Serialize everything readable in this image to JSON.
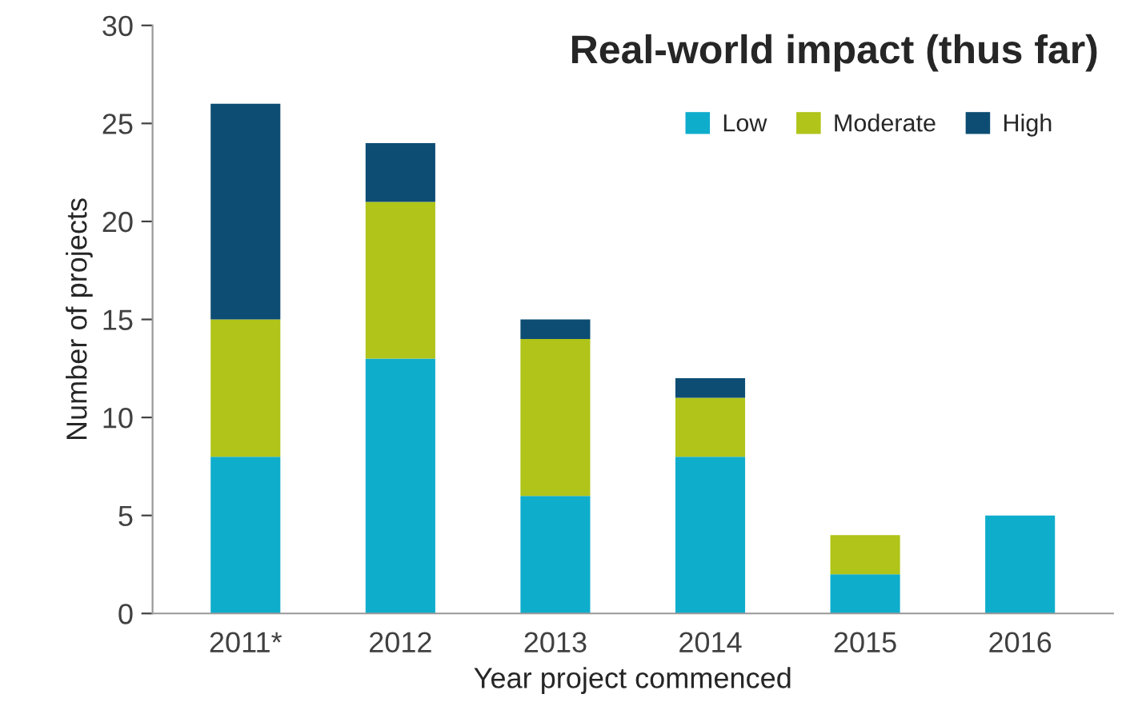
{
  "chart_data": {
    "type": "bar",
    "title": "Real-world impact (thus far)",
    "xlabel": "Year project commenced",
    "ylabel": "Number of projects",
    "categories": [
      "2011*",
      "2012",
      "2013",
      "2014",
      "2015",
      "2016"
    ],
    "stacked": true,
    "series": [
      {
        "name": "Low",
        "color": "#0fadcc",
        "values": [
          8,
          13,
          6,
          8,
          2,
          5
        ]
      },
      {
        "name": "Moderate",
        "color": "#b0c419",
        "values": [
          7,
          8,
          8,
          3,
          2,
          0
        ]
      },
      {
        "name": "High",
        "color": "#0d4d73",
        "values": [
          11,
          3,
          1,
          1,
          0,
          0
        ]
      }
    ],
    "ylim": [
      0,
      30
    ],
    "yticks": [
      0,
      5,
      10,
      15,
      20,
      25,
      30
    ],
    "grid": false,
    "legend": "top right"
  }
}
